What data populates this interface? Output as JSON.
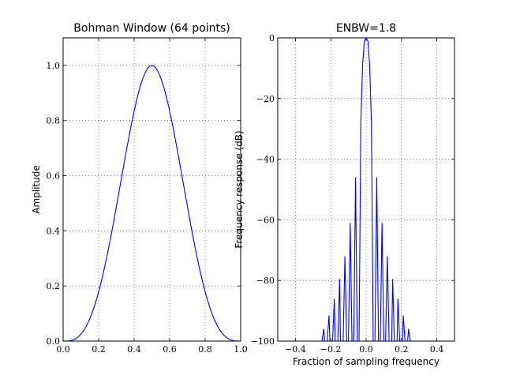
{
  "chart_data": [
    {
      "type": "line",
      "title": "Bohman Window (64 points)",
      "xlabel": "",
      "ylabel": "Amplitude",
      "xlim": [
        0.0,
        1.0
      ],
      "ylim": [
        0.0,
        1.1
      ],
      "xticks": [
        0.0,
        0.2,
        0.4,
        0.6,
        0.8,
        1.0
      ],
      "yticks": [
        0.0,
        0.2,
        0.4,
        0.6,
        0.8,
        1.0
      ],
      "xtick_labels": [
        "0.0",
        "0.2",
        "0.4",
        "0.6",
        "0.8",
        "1.0"
      ],
      "ytick_labels": [
        "0.0",
        "0.2",
        "0.4",
        "0.6",
        "0.8",
        "1.0"
      ],
      "grid": true,
      "legend": "none",
      "series": [
        {
          "color": "#0000ff",
          "x": [
            0.0,
            0.05,
            0.1,
            0.15,
            0.2,
            0.25,
            0.3,
            0.35,
            0.4,
            0.45,
            0.5,
            0.55,
            0.6,
            0.65,
            0.7,
            0.75,
            0.8,
            0.85,
            0.9,
            0.95,
            1.0
          ],
          "y": [
            0.0,
            0.006,
            0.041,
            0.116,
            0.225,
            0.357,
            0.505,
            0.655,
            0.795,
            0.909,
            1.0,
            0.909,
            0.795,
            0.655,
            0.505,
            0.357,
            0.225,
            0.116,
            0.041,
            0.006,
            0.0
          ]
        }
      ]
    },
    {
      "type": "line",
      "title": "ENBW=1.8",
      "xlabel": "Fraction of sampling frequency",
      "ylabel": "Frequency response (dB)",
      "xlim": [
        -0.5,
        0.5
      ],
      "ylim": [
        -100,
        0
      ],
      "xticks": [
        -0.4,
        -0.2,
        0.0,
        0.2,
        0.4
      ],
      "yticks": [
        -100,
        -80,
        -60,
        -40,
        -20,
        0
      ],
      "xtick_labels": [
        "−0.4",
        "−0.2",
        "0.0",
        "0.2",
        "0.4"
      ],
      "ytick_labels": [
        "−100",
        "−80",
        "−60",
        "−40",
        "−20",
        "0"
      ],
      "grid": true,
      "legend": "none",
      "series": [
        {
          "color": "#0000ff",
          "x": [
            -0.25,
            -0.24,
            -0.235,
            -0.22,
            -0.21,
            -0.205,
            -0.19,
            -0.18,
            -0.175,
            -0.16,
            -0.15,
            -0.145,
            -0.13,
            -0.12,
            -0.11,
            -0.1,
            -0.09,
            -0.08,
            -0.07,
            -0.06,
            -0.05,
            -0.04,
            -0.03,
            -0.02,
            -0.01,
            0.0,
            0.01,
            0.02,
            0.03,
            0.04,
            0.05,
            0.06,
            0.07,
            0.08,
            0.09,
            0.1,
            0.11,
            0.12,
            0.13,
            0.145,
            0.15,
            0.16,
            0.175,
            0.18,
            0.19,
            0.205,
            0.21,
            0.22,
            0.235,
            0.24,
            0.25
          ],
          "y": [
            -100,
            -96,
            -100,
            -100,
            -91.5,
            -100,
            -100,
            -86,
            -100,
            -100,
            -79.5,
            -100,
            -100,
            -72,
            -100,
            -100,
            -61,
            -100,
            -100,
            -46,
            -100,
            -100,
            -28,
            -9,
            -1,
            0,
            -1,
            -9,
            -28,
            -100,
            -100,
            -46,
            -100,
            -100,
            -61,
            -100,
            -100,
            -72,
            -100,
            -100,
            -79.5,
            -100,
            -100,
            -86,
            -100,
            -100,
            -91.5,
            -100,
            -100,
            -96,
            -100
          ]
        }
      ]
    }
  ]
}
